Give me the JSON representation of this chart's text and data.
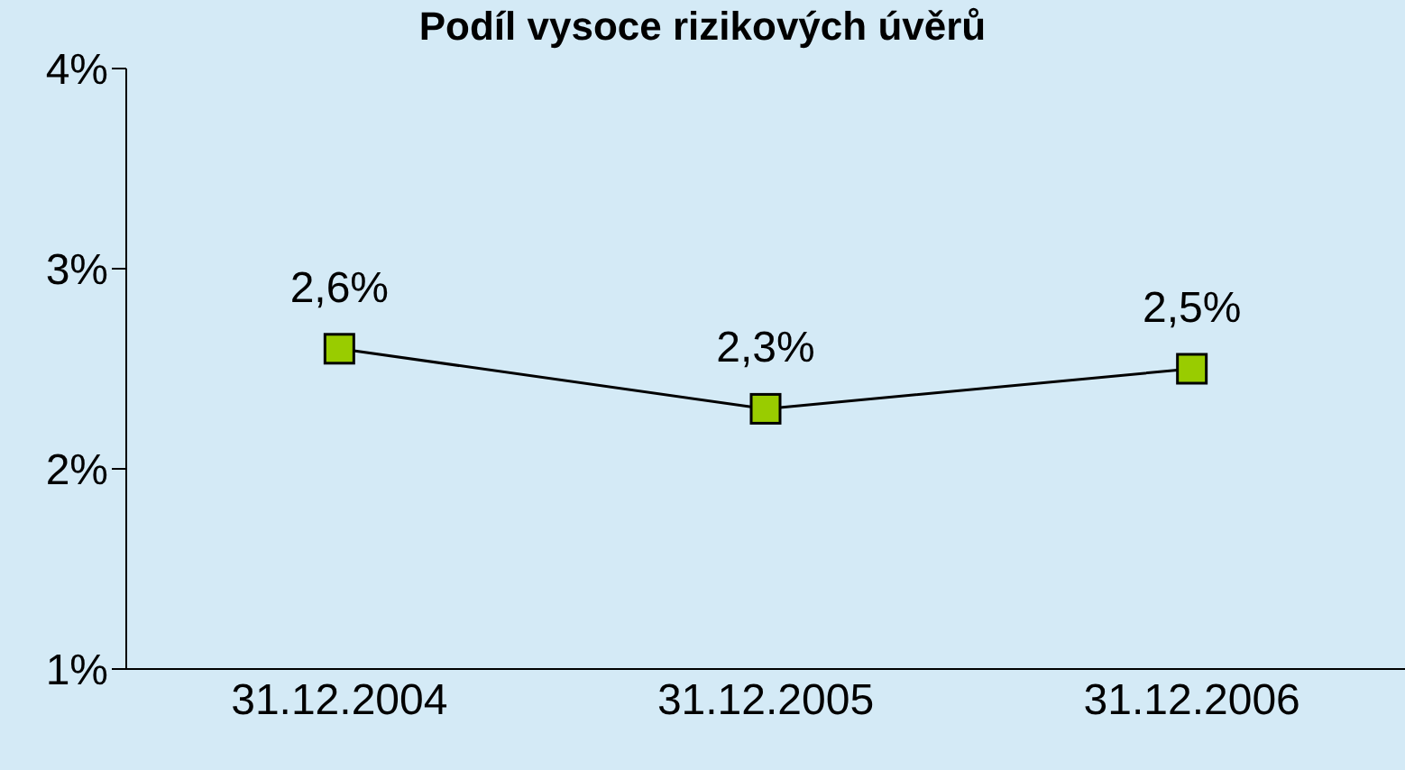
{
  "chart_data": {
    "type": "line",
    "title": "Podíl vysoce rizikových úvěrů",
    "categories": [
      "31.12.2004",
      "31.12.2005",
      "31.12.2006"
    ],
    "series": [
      {
        "color": "#99cc00",
        "values": [
          2.6,
          2.3,
          2.5
        ],
        "value_labels": [
          "2,6%",
          "2,3%",
          "2,5%"
        ]
      }
    ],
    "ylim": [
      1,
      4
    ],
    "yticks": [
      {
        "value": 1,
        "label": "1%"
      },
      {
        "value": 2,
        "label": "2%"
      },
      {
        "value": 3,
        "label": "3%"
      },
      {
        "value": 4,
        "label": "4%"
      }
    ],
    "grid": false,
    "legend": false,
    "marker": "square",
    "line_style": "solid"
  }
}
